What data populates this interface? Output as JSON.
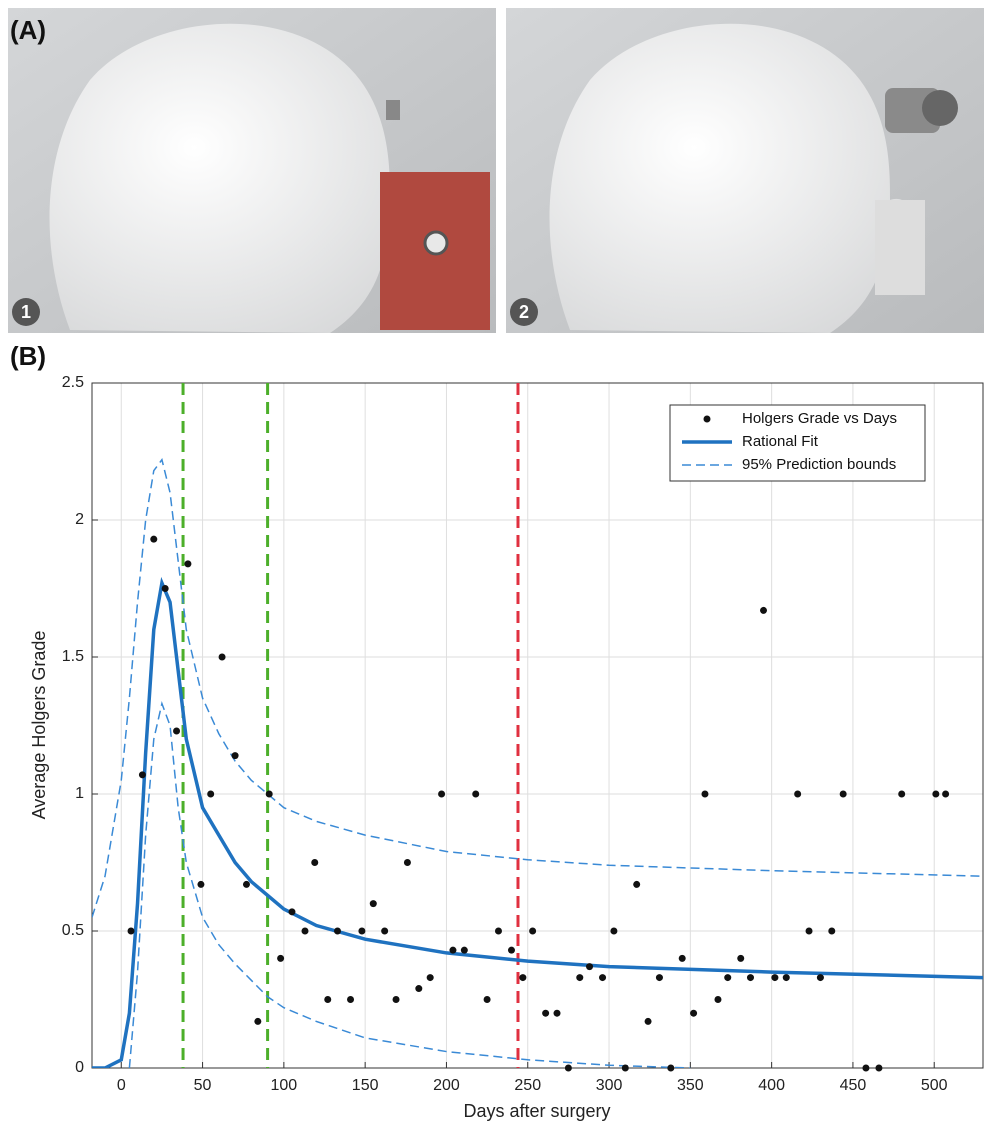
{
  "panel_a": {
    "label": "(A)",
    "photos": [
      {
        "badge": "1"
      },
      {
        "badge": "2"
      }
    ]
  },
  "panel_b": {
    "label": "(B)"
  },
  "chart_data": {
    "type": "scatter",
    "x_label": "Days after surgery",
    "y_label": "Average Holgers Grade",
    "xlim": [
      -18,
      530
    ],
    "ylim": [
      0,
      2.5
    ],
    "xticks": [
      0,
      50,
      100,
      150,
      200,
      250,
      300,
      350,
      400,
      450,
      500
    ],
    "yticks": [
      0,
      0.5,
      1,
      1.5,
      2,
      2.5
    ],
    "grid": true,
    "legend": "upper right",
    "vlines": [
      {
        "x": 38,
        "color": "#4caf2a"
      },
      {
        "x": 90,
        "color": "#4caf2a"
      },
      {
        "x": 244,
        "color": "#e03040"
      }
    ],
    "series": [
      {
        "name": "Holgers Grade vs Days",
        "type": "scatter",
        "color": "#111111",
        "x": [
          6,
          13,
          20,
          27,
          34,
          41,
          49,
          55,
          62,
          70,
          77,
          84,
          91,
          98,
          105,
          113,
          119,
          127,
          133,
          141,
          148,
          155,
          162,
          169,
          176,
          183,
          190,
          197,
          204,
          211,
          218,
          225,
          232,
          240,
          247,
          253,
          261,
          268,
          275,
          282,
          288,
          296,
          303,
          310,
          317,
          324,
          331,
          338,
          345,
          352,
          359,
          367,
          373,
          381,
          387,
          395,
          402,
          409,
          416,
          423,
          430,
          437,
          444,
          458,
          466,
          480,
          501,
          507
        ],
        "values": [
          0.5,
          1.07,
          1.93,
          1.75,
          1.23,
          1.84,
          0.67,
          1.0,
          1.5,
          1.14,
          0.67,
          0.17,
          1.0,
          0.4,
          0.57,
          0.5,
          0.75,
          0.25,
          0.5,
          0.25,
          0.5,
          0.6,
          0.5,
          0.25,
          0.75,
          0.29,
          0.33,
          1.0,
          0.43,
          0.43,
          1.0,
          0.25,
          0.5,
          0.43,
          0.33,
          0.5,
          0.2,
          0.2,
          0,
          0.33,
          0.37,
          0.33,
          0.5,
          0,
          0.67,
          0.17,
          0.33,
          0,
          0.4,
          0.2,
          1.0,
          0.25,
          0.33,
          0.4,
          0.33,
          1.67,
          0.33,
          0.33,
          1.0,
          0.5,
          0.33,
          0.5,
          1.0,
          0,
          0,
          1.0,
          1.0,
          1.0
        ]
      },
      {
        "name": "Rational Fit",
        "type": "line",
        "color": "#1f72c0",
        "x": [
          -18,
          -10,
          0,
          5,
          10,
          15,
          20,
          25,
          30,
          35,
          40,
          50,
          60,
          70,
          80,
          90,
          100,
          120,
          150,
          200,
          250,
          300,
          400,
          530
        ],
        "values": [
          0,
          0,
          0.03,
          0.2,
          0.6,
          1.15,
          1.6,
          1.77,
          1.7,
          1.45,
          1.2,
          0.95,
          0.85,
          0.75,
          0.68,
          0.63,
          0.58,
          0.52,
          0.47,
          0.42,
          0.39,
          0.37,
          0.35,
          0.33
        ]
      },
      {
        "name": "95% Prediction bounds",
        "type": "dashed",
        "color": "#3a8ad6",
        "x": [
          -18,
          -10,
          0,
          5,
          10,
          15,
          20,
          25,
          30,
          35,
          40,
          50,
          60,
          70,
          80,
          90,
          100,
          120,
          150,
          200,
          250,
          300,
          400,
          530,
          null,
          5,
          10,
          15,
          20,
          25,
          30,
          35,
          40,
          50,
          60,
          70,
          80,
          90,
          100,
          120,
          150,
          200,
          250,
          300,
          350
        ],
        "values": [
          0.55,
          0.7,
          1.05,
          1.35,
          1.7,
          2.0,
          2.18,
          2.22,
          2.1,
          1.85,
          1.6,
          1.35,
          1.22,
          1.12,
          1.05,
          1.0,
          0.95,
          0.9,
          0.85,
          0.79,
          0.76,
          0.74,
          0.72,
          0.7,
          null,
          0,
          0.35,
          0.85,
          1.2,
          1.33,
          1.25,
          0.95,
          0.75,
          0.55,
          0.45,
          0.38,
          0.32,
          0.26,
          0.22,
          0.17,
          0.11,
          0.06,
          0.03,
          0.01,
          0
        ]
      }
    ]
  }
}
